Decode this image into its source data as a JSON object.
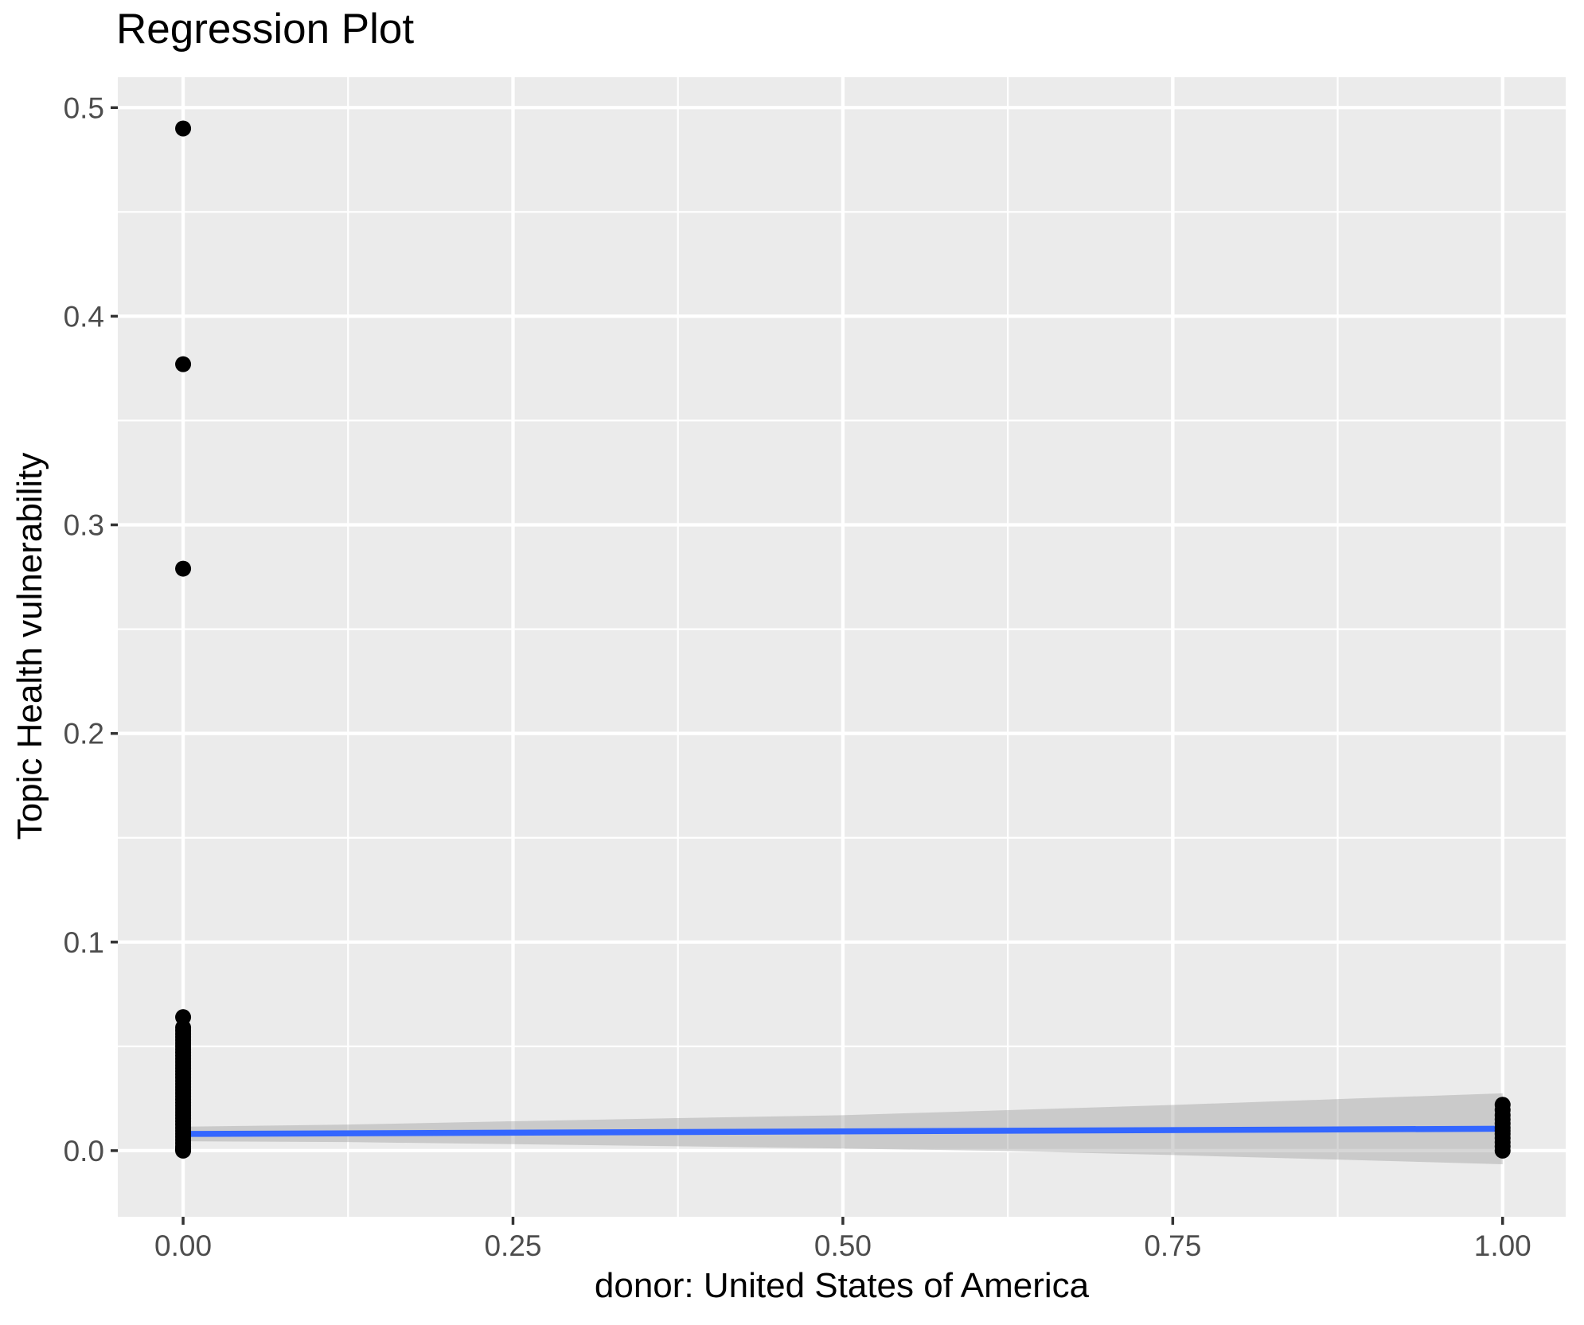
{
  "plot": {
    "title": "Regression Plot",
    "x_axis_title": "donor: United States of America",
    "y_axis_title": "Topic Health vulnerability"
  },
  "chart_data": {
    "type": "scatter",
    "title": "Regression Plot",
    "xlabel": "donor: United States of America",
    "ylabel": "Topic Health vulnerability",
    "xlim": [
      -0.0495,
      1.0478
    ],
    "ylim": [
      -0.0317,
      0.5146
    ],
    "grid": "major+minor, white on grey panel",
    "legend_position": "none",
    "x_major_ticks": [
      {
        "v": 0.0,
        "label": "0.00"
      },
      {
        "v": 0.25,
        "label": "0.25"
      },
      {
        "v": 0.5,
        "label": "0.50"
      },
      {
        "v": 0.75,
        "label": "0.75"
      },
      {
        "v": 1.0,
        "label": "1.00"
      }
    ],
    "x_minor_ticks": [
      0.125,
      0.375,
      0.625,
      0.875
    ],
    "y_major_ticks": [
      {
        "v": 0.0,
        "label": "0.0"
      },
      {
        "v": 0.1,
        "label": "0.1"
      },
      {
        "v": 0.2,
        "label": "0.2"
      },
      {
        "v": 0.3,
        "label": "0.3"
      },
      {
        "v": 0.4,
        "label": "0.4"
      },
      {
        "v": 0.5,
        "label": "0.5"
      }
    ],
    "y_minor_ticks": [
      0.05,
      0.15,
      0.25,
      0.35,
      0.45
    ],
    "series": [
      {
        "name": "cluster-x0",
        "x": 0,
        "y": [
          0.064,
          0.059,
          0.0575,
          0.056,
          0.0545,
          0.053,
          0.0515,
          0.05,
          0.0485,
          0.047,
          0.0455,
          0.044,
          0.0425,
          0.041,
          0.0395,
          0.038,
          0.0365,
          0.035,
          0.0335,
          0.032,
          0.0305,
          0.029,
          0.0275,
          0.026,
          0.0245,
          0.023,
          0.0215,
          0.02,
          0.0185,
          0.017,
          0.0155,
          0.014,
          0.0125,
          0.011,
          0.0095,
          0.008,
          0.0065,
          0.005,
          0.0035,
          0.002,
          0.001,
          0.0005,
          0.0
        ]
      },
      {
        "name": "outliers-x0",
        "x": 0,
        "y": [
          0.49,
          0.377,
          0.279
        ]
      },
      {
        "name": "cluster-x1",
        "x": 1,
        "y": [
          0.022,
          0.0195,
          0.017,
          0.015,
          0.013,
          0.011,
          0.0095,
          0.008,
          0.006,
          0.004,
          0.002,
          0.0
        ]
      }
    ],
    "smooth": {
      "line": {
        "x": [
          0,
          1
        ],
        "y": [
          0.008,
          0.0105
        ]
      },
      "ribbon": {
        "x": [
          0.0,
          0.125,
          0.25,
          0.375,
          0.5,
          0.625,
          0.75,
          0.875,
          1.0
        ],
        "upper": [
          0.0115,
          0.0125,
          0.0141,
          0.0156,
          0.017,
          0.0194,
          0.0219,
          0.0247,
          0.0275
        ],
        "lower": [
          0.0045,
          0.0041,
          0.0031,
          0.0021,
          0.001,
          -0.0002,
          -0.0021,
          -0.0043,
          -0.0065
        ]
      }
    },
    "colors": {
      "panel_bg": "#EBEBEB",
      "gridline": "#FFFFFF",
      "point": "#000000",
      "smooth_line": "#3366FF",
      "ribbon_fill": "#999999",
      "ribbon_opacity": 0.4,
      "tick_label": "#4D4D4D",
      "tick_mark": "#333333",
      "title_text": "#000000"
    }
  }
}
